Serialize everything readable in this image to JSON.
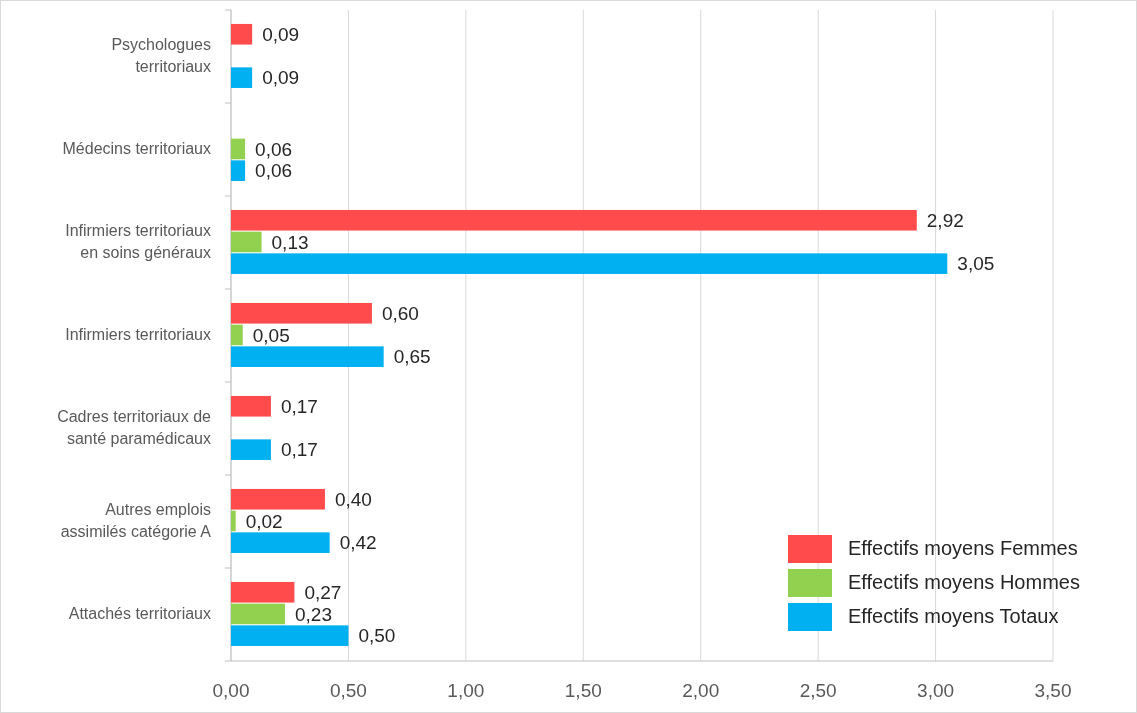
{
  "chart_data": {
    "type": "bar",
    "orientation": "horizontal",
    "categories": [
      "Psychologues territoriaux",
      "Médecins territoriaux",
      "Infirmiers territoriaux en soins généraux",
      "Infirmiers territoriaux",
      "Cadres territoriaux de santé paramédicaux",
      "Autres emplois assimilés catégorie A",
      "Attachés territoriaux"
    ],
    "series": [
      {
        "name": "Effectifs moyens Femmes",
        "color": "#ff4b4b",
        "values": [
          0.09,
          null,
          2.92,
          0.6,
          0.17,
          0.4,
          0.27
        ],
        "value_labels": [
          "0,09",
          null,
          "2,92",
          "0,60",
          "0,17",
          "0,40",
          "0,27"
        ]
      },
      {
        "name": "Effectifs moyens Hommes",
        "color": "#92d050",
        "values": [
          null,
          0.06,
          0.13,
          0.05,
          null,
          0.02,
          0.23
        ],
        "value_labels": [
          null,
          "0,06",
          "0,13",
          "0,05",
          null,
          "0,02",
          "0,23"
        ]
      },
      {
        "name": "Effectifs moyens Totaux",
        "color": "#00b0f0",
        "values": [
          0.09,
          0.06,
          3.05,
          0.65,
          0.17,
          0.42,
          0.5
        ],
        "value_labels": [
          "0,09",
          "0,06",
          "3,05",
          "0,65",
          "0,17",
          "0,42",
          "0,50"
        ]
      }
    ],
    "xlim": [
      0,
      3.5
    ],
    "xticks": [
      {
        "value": 0,
        "label": "0,00"
      },
      {
        "value": 0.5,
        "label": "0,50"
      },
      {
        "value": 1,
        "label": "1,00"
      },
      {
        "value": 1.5,
        "label": "1,50"
      },
      {
        "value": 2,
        "label": "2,00"
      },
      {
        "value": 2.5,
        "label": "2,50"
      },
      {
        "value": 3,
        "label": "3,00"
      },
      {
        "value": 3.5,
        "label": "3,50"
      }
    ],
    "grid": "x",
    "legend": "bottom right"
  }
}
